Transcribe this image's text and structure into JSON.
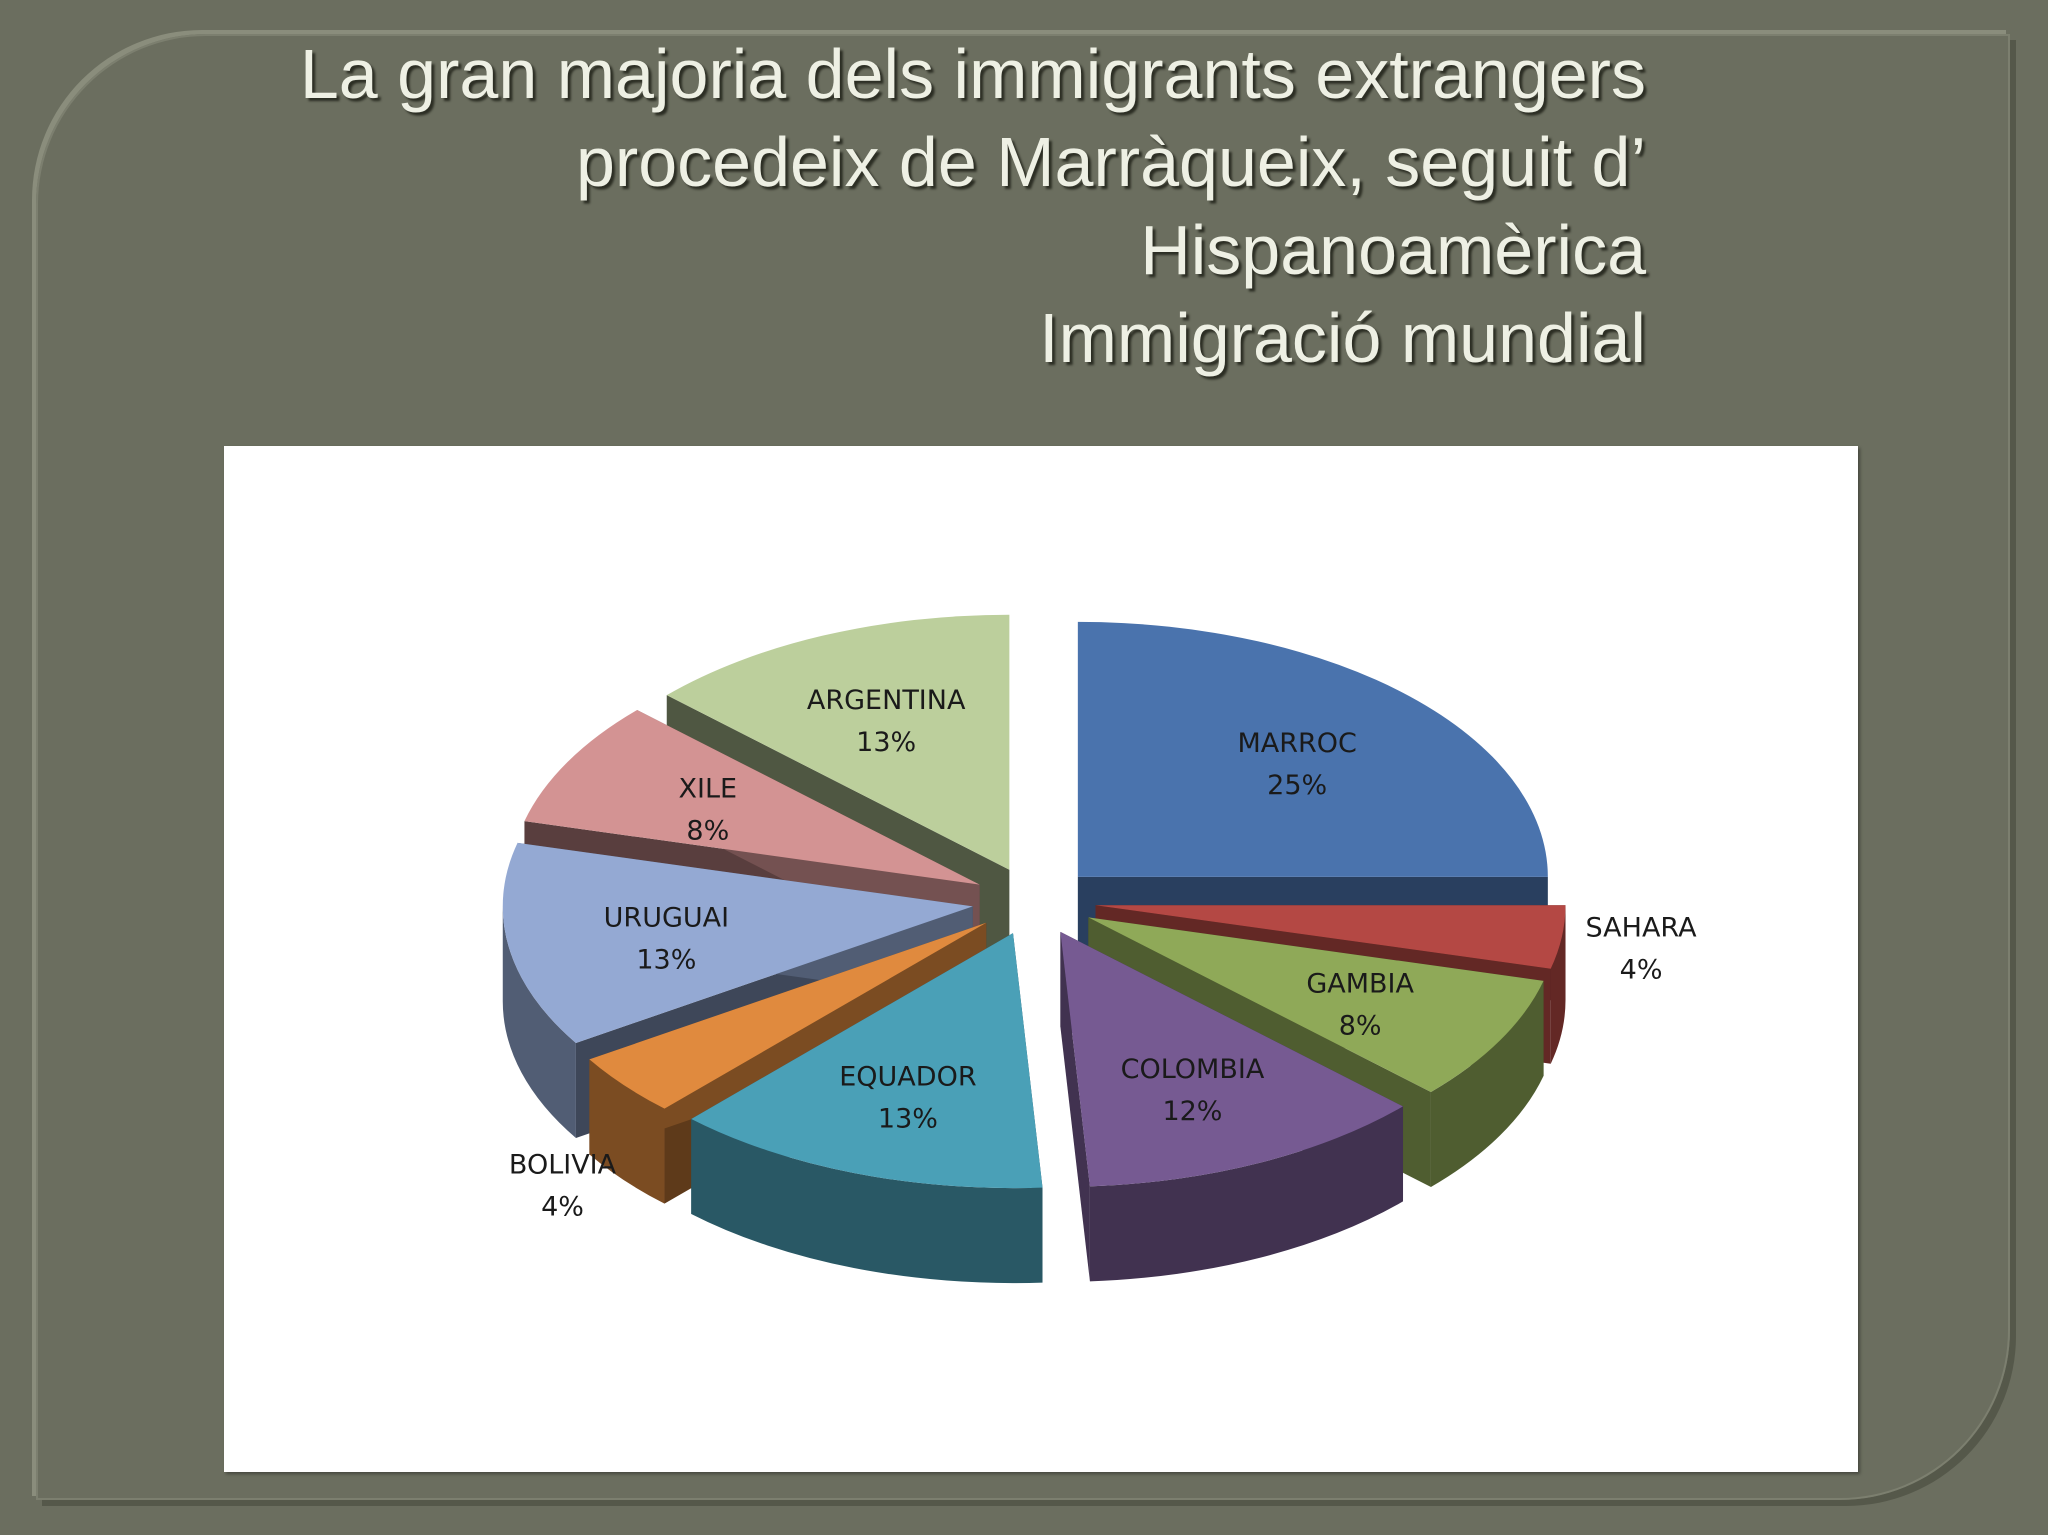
{
  "title": {
    "lines": [
      "La gran majoria dels immigrants extrangers",
      "procedeix de Marràqueix, seguit d’",
      "Hispanoamèrica",
      "Immigració mundial"
    ]
  },
  "chart_data": {
    "type": "pie",
    "style": "3d-exploded",
    "title": "",
    "show_percent_labels": true,
    "slices": [
      {
        "name": "MARROC",
        "percent_label": "25%",
        "value": 25,
        "color": "#4a73ad"
      },
      {
        "name": "SAHARA",
        "percent_label": "4%",
        "value": 4,
        "color": "#b44844"
      },
      {
        "name": "GAMBIA",
        "percent_label": "8%",
        "value": 8,
        "color": "#8fa958"
      },
      {
        "name": "COLOMBIA",
        "percent_label": "12%",
        "value": 12,
        "color": "#765a92"
      },
      {
        "name": "EQUADOR",
        "percent_label": "13%",
        "value": 13,
        "color": "#4aa0b7"
      },
      {
        "name": "BOLIVIA",
        "percent_label": "4%",
        "value": 4,
        "color": "#e08a3e"
      },
      {
        "name": "URUGUAI",
        "percent_label": "13%",
        "value": 13,
        "color": "#94a9d3"
      },
      {
        "name": "XILE",
        "percent_label": "8%",
        "value": 8,
        "color": "#d39393"
      },
      {
        "name": "ARGENTINA",
        "percent_label": "13%",
        "value": 13,
        "color": "#bccf9c"
      }
    ]
  }
}
